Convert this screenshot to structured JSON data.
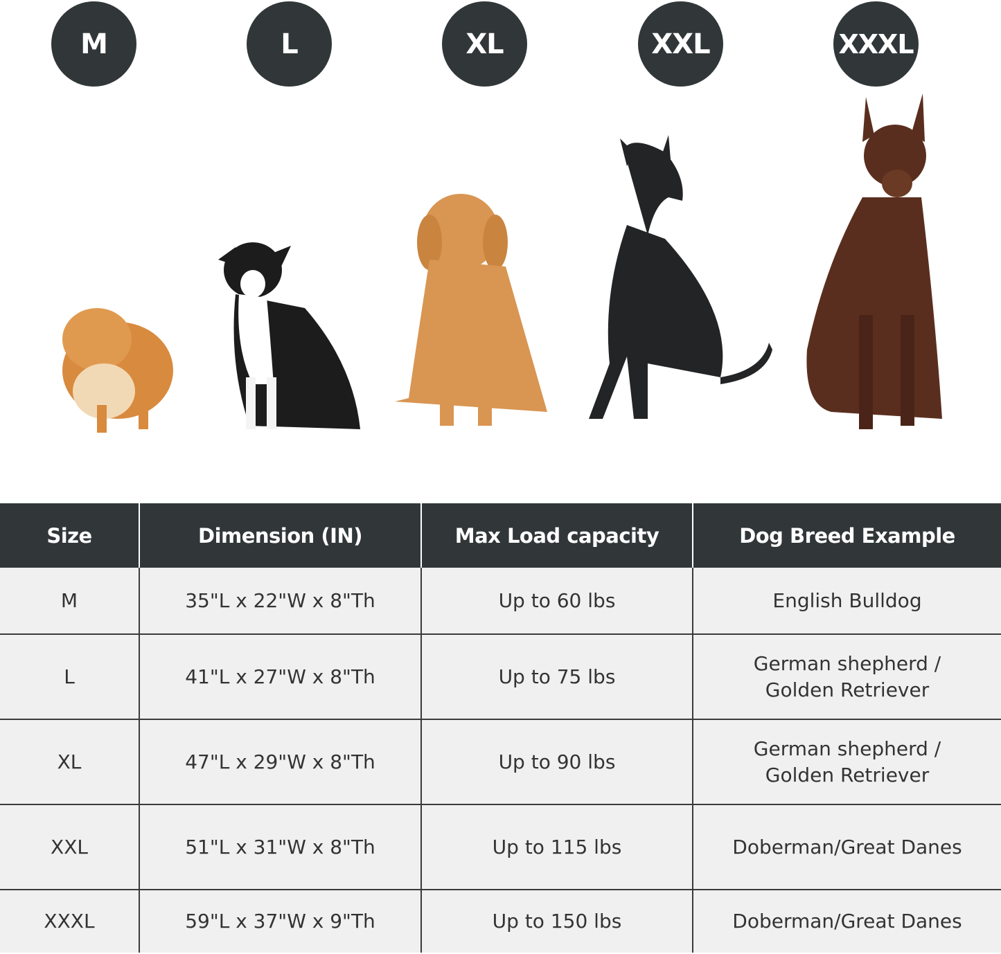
{
  "badges": [
    "M",
    "L",
    "XL",
    "XXL",
    "XXXL"
  ],
  "dogs": [
    {
      "icon": "pomeranian-image",
      "color": "#d88a3e"
    },
    {
      "icon": "border-collie-image",
      "color": "#1c1c1c"
    },
    {
      "icon": "golden-retriever-image",
      "color": "#d99552"
    },
    {
      "icon": "great-dane-image",
      "color": "#222425"
    },
    {
      "icon": "doberman-image",
      "color": "#5a2e1e"
    }
  ],
  "table": {
    "headers": [
      "Size",
      "Dimension (IN)",
      "Max Load capacity",
      "Dog Breed Example"
    ],
    "rows": [
      [
        "M",
        "35\"L x 22\"W x 8\"Th",
        "Up to 60 lbs",
        "English Bulldog"
      ],
      [
        "L",
        "41\"L x 27\"W x 8\"Th",
        "Up to 75 lbs",
        "German shepherd /\nGolden Retriever"
      ],
      [
        "XL",
        "47\"L x 29\"W x 8\"Th",
        "Up to 90 lbs",
        "German shepherd /\nGolden Retriever"
      ],
      [
        "XXL",
        "51\"L x 31\"W x 8\"Th",
        "Up to 115 lbs",
        "Doberman/Great Danes"
      ],
      [
        "XXXL",
        "59\"L x 37\"W x 9\"Th",
        "Up to 150 lbs",
        "Doberman/Great Danes"
      ]
    ]
  },
  "colors": {
    "header_bg": "#313739",
    "row_bg": "#f0f0f0",
    "text": "#333333"
  }
}
